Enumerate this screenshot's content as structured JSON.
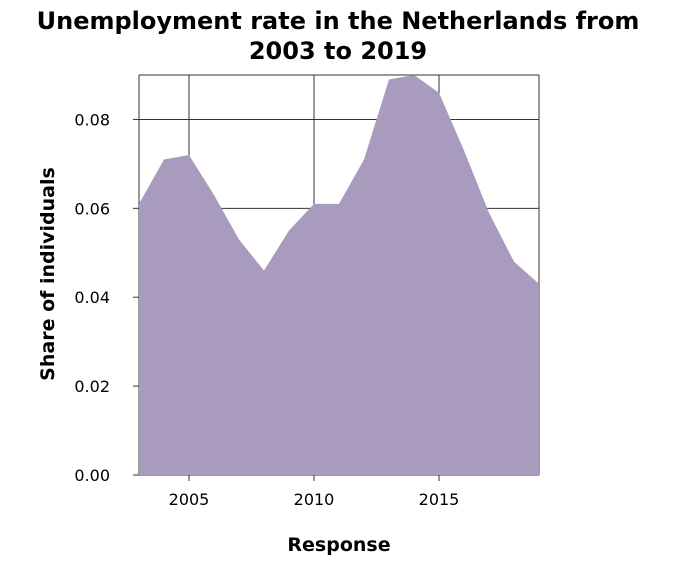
{
  "chart_data": {
    "type": "area",
    "title_lines": [
      "Unemployment rate in the Netherlands from",
      "2003 to 2019"
    ],
    "xlabel": "Response",
    "ylabel": "Share of individuals",
    "x": [
      2003,
      2004,
      2005,
      2006,
      2007,
      2008,
      2009,
      2010,
      2011,
      2012,
      2013,
      2014,
      2015,
      2016,
      2017,
      2018,
      2019
    ],
    "series": [
      {
        "values": [
          0.061,
          0.071,
          0.072,
          0.063,
          0.053,
          0.046,
          0.055,
          0.061,
          0.061,
          0.071,
          0.089,
          0.09,
          0.086,
          0.073,
          0.059,
          0.048,
          0.043
        ]
      }
    ],
    "xlim": [
      2003,
      2019
    ],
    "ylim": [
      0,
      0.09
    ],
    "xticks": [
      2005,
      2010,
      2015
    ],
    "xtick_labels": [
      "2005",
      "2010",
      "2015"
    ],
    "yticks": [
      0,
      0.02,
      0.04,
      0.06,
      0.08
    ],
    "ytick_labels": [
      "0.00",
      "0.02",
      "0.04",
      "0.06",
      "0.08"
    ],
    "grid": true,
    "fill_color": "#a99bbd",
    "grid_color": "#333333"
  }
}
